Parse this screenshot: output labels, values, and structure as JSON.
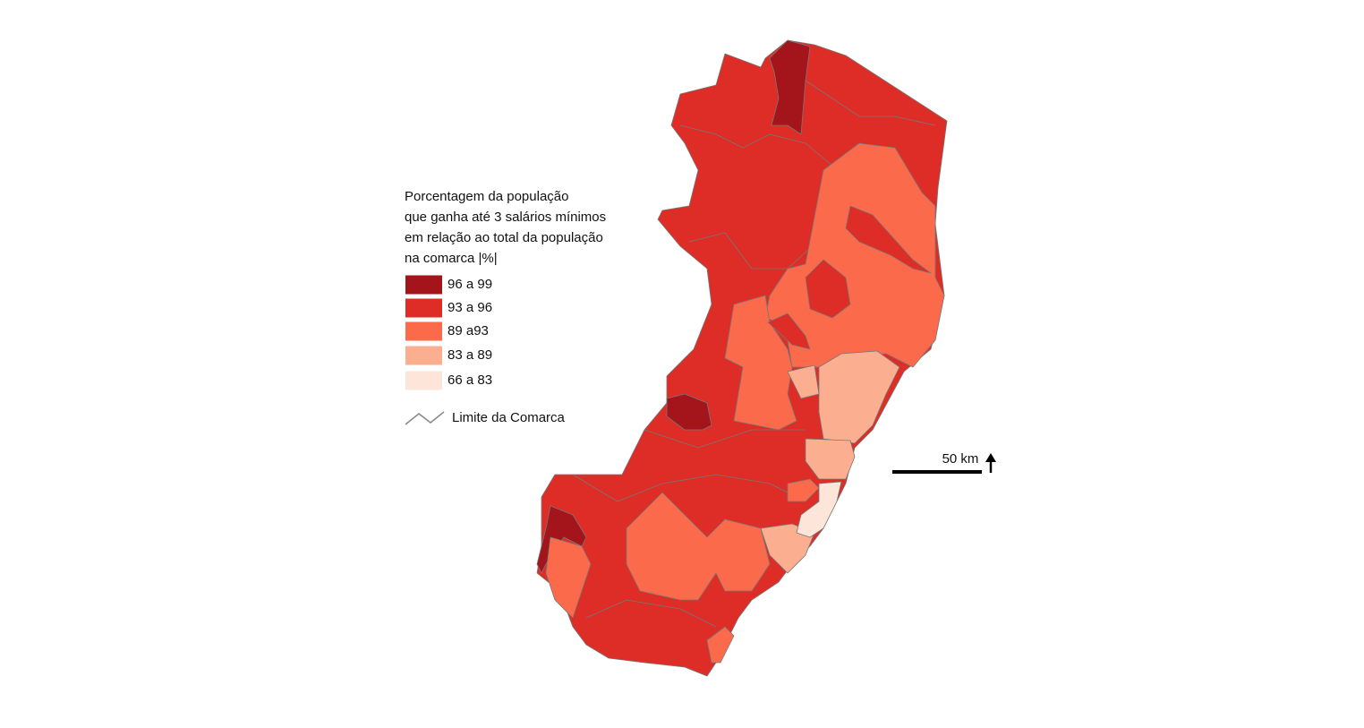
{
  "legend": {
    "title": [
      "Porcentagem da população",
      "que ganha até 3 salários mínimos",
      "em relação ao total da população",
      "na comarca |%|"
    ],
    "classes": [
      {
        "label": "96 a 99",
        "color": "#a3141b"
      },
      {
        "label": "93 a 96",
        "color": "#de2d26"
      },
      {
        "label": "89 a93",
        "color": "#fb6a4a"
      },
      {
        "label": "83 a 89",
        "color": "#fcae91"
      },
      {
        "label": "66 a 83",
        "color": "#fee5d9"
      }
    ],
    "boundary": "Limite da Comarca"
  },
  "scale": {
    "label": "50 km"
  }
}
